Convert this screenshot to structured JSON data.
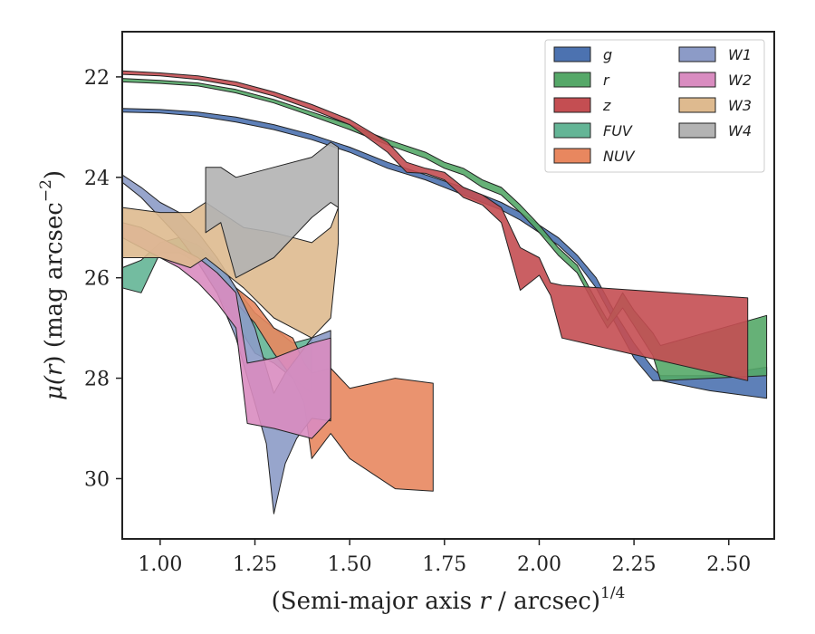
{
  "chart_data": {
    "type": "area",
    "xlabel": "(Semi-major axis r / arcsec)^1/4",
    "xlabel_parts": {
      "main": "(Semi-major axis ",
      "var": "r",
      "rest": " / arcsec)",
      "sup": "1/4"
    },
    "ylabel": "μ(r) (mag arcsec−2)",
    "ylabel_parts": {
      "mu": "μ(",
      "var": "r",
      "mid": ") (mag arcsec",
      "sup": "−2",
      "end": ")"
    },
    "xlim": [
      0.9,
      2.62
    ],
    "ylim": [
      31.2,
      21.1
    ],
    "y_inverted": true,
    "xticks": [
      1.0,
      1.25,
      1.5,
      1.75,
      2.0,
      2.25,
      2.5
    ],
    "xtick_labels": [
      "1.00",
      "1.25",
      "1.50",
      "1.75",
      "2.00",
      "2.25",
      "2.50"
    ],
    "yticks": [
      22,
      24,
      26,
      28,
      30
    ],
    "ytick_labels": [
      "22",
      "24",
      "26",
      "28",
      "30"
    ],
    "grid": false,
    "legend_position": "top-right",
    "legend_columns": 2,
    "series": [
      {
        "name": "g",
        "color": "#4c72b0",
        "x": [
          0.9,
          1.0,
          1.1,
          1.2,
          1.3,
          1.4,
          1.5,
          1.6,
          1.7,
          1.8,
          1.9,
          1.95,
          2.0,
          2.05,
          2.1,
          2.15,
          2.2,
          2.25,
          2.3,
          2.32,
          2.45,
          2.6
        ],
        "lower": [
          22.63,
          22.65,
          22.7,
          22.8,
          22.95,
          23.15,
          23.4,
          23.7,
          23.95,
          24.2,
          24.5,
          24.7,
          24.95,
          25.2,
          25.55,
          26.0,
          26.7,
          27.3,
          27.8,
          27.95,
          27.95,
          27.78
        ],
        "upper": [
          22.7,
          22.72,
          22.78,
          22.9,
          23.05,
          23.25,
          23.5,
          23.82,
          24.05,
          24.35,
          24.65,
          24.85,
          25.1,
          25.35,
          25.7,
          26.2,
          26.9,
          27.6,
          28.05,
          28.05,
          28.25,
          28.4
        ]
      },
      {
        "name": "r",
        "color": "#55a868",
        "x": [
          0.9,
          1.0,
          1.1,
          1.2,
          1.3,
          1.4,
          1.5,
          1.6,
          1.7,
          1.75,
          1.8,
          1.85,
          1.9,
          1.95,
          2.0,
          2.05,
          2.1,
          2.15,
          2.18,
          2.22,
          2.25,
          2.3,
          2.32,
          2.6
        ],
        "lower": [
          22.03,
          22.07,
          22.12,
          22.25,
          22.45,
          22.7,
          22.95,
          23.25,
          23.5,
          23.7,
          23.82,
          24.05,
          24.2,
          24.55,
          24.95,
          25.4,
          25.75,
          26.45,
          26.85,
          26.3,
          26.65,
          27.1,
          27.35,
          26.75
        ],
        "upper": [
          22.1,
          22.13,
          22.18,
          22.32,
          22.52,
          22.78,
          23.05,
          23.35,
          23.62,
          23.82,
          23.95,
          24.2,
          24.35,
          24.7,
          25.1,
          25.55,
          25.9,
          26.6,
          27.0,
          26.6,
          26.95,
          27.55,
          28.05,
          27.95
        ]
      },
      {
        "name": "z",
        "color": "#c44e52",
        "x": [
          0.9,
          1.0,
          1.1,
          1.2,
          1.3,
          1.4,
          1.5,
          1.6,
          1.65,
          1.7,
          1.75,
          1.8,
          1.85,
          1.9,
          1.95,
          2.0,
          2.03,
          2.06,
          2.55
        ],
        "lower": [
          21.88,
          21.92,
          21.98,
          22.1,
          22.3,
          22.55,
          22.85,
          23.3,
          23.7,
          23.82,
          23.9,
          24.2,
          24.35,
          24.6,
          25.4,
          25.6,
          26.1,
          26.15,
          26.4
        ],
        "upper": [
          21.95,
          21.98,
          22.05,
          22.18,
          22.38,
          22.65,
          22.95,
          23.5,
          23.9,
          23.92,
          24.05,
          24.4,
          24.55,
          24.9,
          26.25,
          25.95,
          26.35,
          27.2,
          28.05
        ]
      },
      {
        "name": "FUV",
        "color": "#64b596",
        "x": [
          0.9,
          0.95,
          1.0,
          1.05,
          1.1,
          1.15,
          1.2,
          1.25,
          1.3,
          1.35,
          1.4
        ],
        "lower": [
          25.8,
          25.65,
          25.3,
          25.2,
          25.35,
          25.7,
          26.2,
          26.7,
          27.0,
          27.3,
          27.2
        ],
        "upper": [
          26.2,
          26.3,
          25.5,
          25.5,
          25.7,
          26.3,
          26.9,
          27.5,
          27.7,
          28.0,
          28.3
        ]
      },
      {
        "name": "NUV",
        "color": "#e8875f",
        "x": [
          1.2,
          1.25,
          1.3,
          1.35,
          1.38,
          1.4,
          1.45,
          1.5,
          1.62,
          1.72
        ],
        "lower": [
          26.2,
          26.5,
          27.0,
          27.2,
          27.7,
          27.9,
          27.8,
          28.2,
          28.0,
          28.1
        ],
        "upper": [
          26.5,
          26.9,
          27.5,
          28.0,
          28.5,
          29.6,
          29.1,
          29.6,
          30.2,
          30.25
        ]
      },
      {
        "name": "W1",
        "color": "#8c9bc7",
        "x": [
          0.9,
          0.95,
          1.0,
          1.05,
          1.1,
          1.15,
          1.2,
          1.25,
          1.28,
          1.3,
          1.33,
          1.36,
          1.4,
          1.45
        ],
        "lower": [
          23.95,
          24.2,
          24.5,
          24.7,
          25.1,
          25.6,
          26.2,
          27.0,
          27.8,
          28.3,
          27.9,
          27.6,
          27.2,
          27.05
        ],
        "upper": [
          24.1,
          24.4,
          24.8,
          25.2,
          25.7,
          26.3,
          27.2,
          28.5,
          29.3,
          30.7,
          29.7,
          29.2,
          28.8,
          28.85
        ]
      },
      {
        "name": "W2",
        "color": "#d98cc0",
        "x": [
          0.9,
          0.95,
          1.0,
          1.05,
          1.1,
          1.15,
          1.2,
          1.23,
          1.3,
          1.4,
          1.45
        ],
        "lower": [
          24.9,
          25.0,
          25.2,
          25.4,
          25.6,
          25.9,
          26.3,
          27.7,
          27.6,
          27.3,
          27.2
        ],
        "upper": [
          25.2,
          25.4,
          25.6,
          25.8,
          26.1,
          26.5,
          27.0,
          28.9,
          29.0,
          29.2,
          28.8
        ]
      },
      {
        "name": "W3",
        "color": "#deba8f",
        "x": [
          0.9,
          1.0,
          1.08,
          1.12,
          1.22,
          1.3,
          1.35,
          1.4,
          1.45,
          1.47
        ],
        "lower": [
          24.6,
          24.7,
          24.7,
          24.5,
          25.0,
          25.1,
          25.2,
          25.3,
          25.0,
          24.6
        ],
        "upper": [
          25.6,
          25.6,
          25.8,
          25.6,
          26.2,
          26.8,
          27.0,
          27.2,
          26.8,
          25.3
        ]
      },
      {
        "name": "W4",
        "color": "#b3b3b3",
        "x": [
          1.12,
          1.16,
          1.2,
          1.3,
          1.4,
          1.45,
          1.47
        ],
        "lower": [
          23.8,
          23.8,
          24.0,
          23.8,
          23.6,
          23.3,
          23.4
        ],
        "upper": [
          25.1,
          24.9,
          26.0,
          25.6,
          24.8,
          24.5,
          24.6
        ]
      }
    ]
  }
}
